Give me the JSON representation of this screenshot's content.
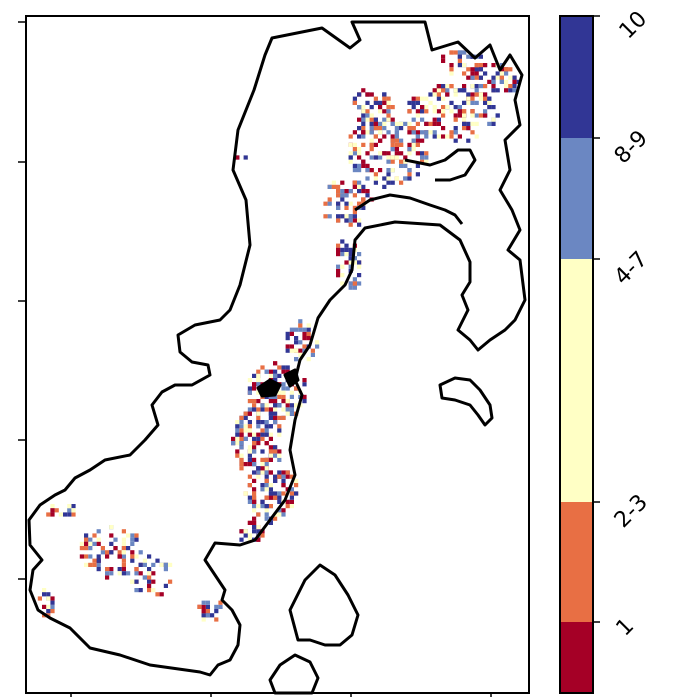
{
  "colorbar": {
    "labels": [
      "10",
      "8-9",
      "4-7",
      "2-3",
      "1"
    ],
    "colors": [
      "#313695",
      "#6b87c2",
      "#ffffc5",
      "#e86f44",
      "#a50026"
    ]
  },
  "map": {
    "cell_colors": [
      "#a50026",
      "#e86f44",
      "#ffffc5",
      "#6b87c2",
      "#313695"
    ],
    "coastline_color": "#000000"
  }
}
